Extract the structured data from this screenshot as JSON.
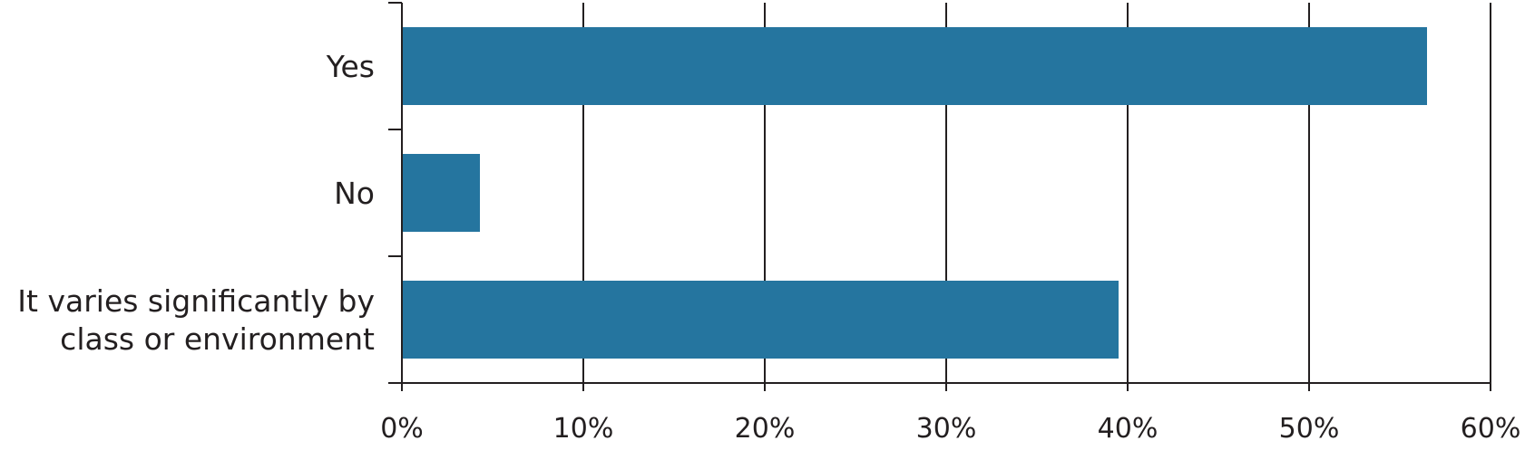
{
  "chart_data": {
    "type": "bar",
    "orientation": "horizontal",
    "categories": [
      [
        "Yes"
      ],
      [
        "No"
      ],
      [
        "It varies significantly by",
        "class or environment"
      ]
    ],
    "values": [
      56.5,
      4.3,
      39.5
    ],
    "xlim": [
      0,
      60
    ],
    "x_ticks": [
      0,
      10,
      20,
      30,
      40,
      50,
      60
    ],
    "x_tick_labels": [
      "0%",
      "10%",
      "20%",
      "30%",
      "40%",
      "50%",
      "60%"
    ],
    "value_unit": "%",
    "grid": "vertical",
    "legend": "none",
    "bar_color": "#25759f",
    "axis_color": "#231f20",
    "text_color": "#231f20"
  }
}
